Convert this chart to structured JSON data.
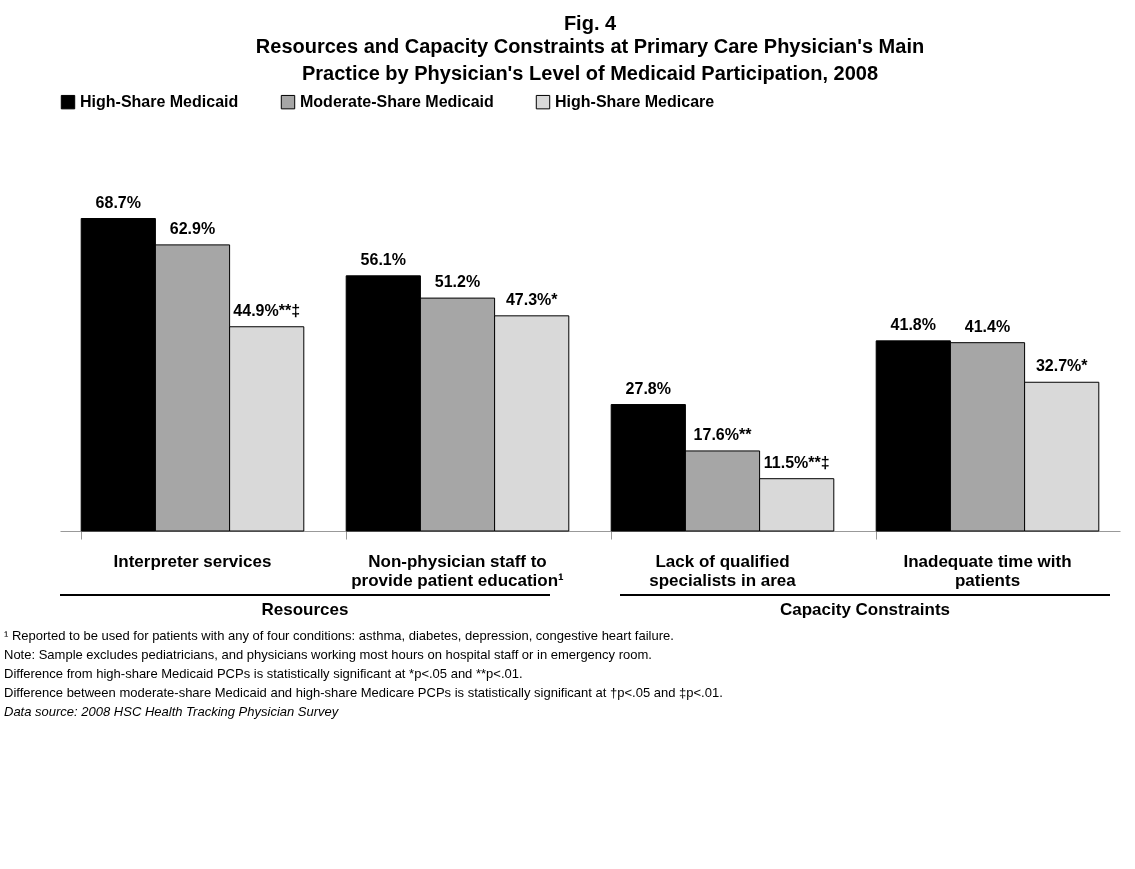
{
  "chart_data": {
    "type": "bar",
    "title": "Fig. 4",
    "subtitle": "Resources and Capacity Constraints at Primary Care Physician's Main Practice by Physician's Level of Medicaid Participation, 2008",
    "categories": [
      "Interpreter services",
      "Non-physician staff to provide patient education¹",
      "Lack of qualified specialists in area",
      "Inadequate time with patients"
    ],
    "series": [
      {
        "name": "High-Share Medicaid",
        "color": "#000000",
        "values": [
          68.7,
          56.1,
          27.8,
          41.8
        ],
        "value_labels": [
          "68.7%",
          "56.1%",
          "27.8%",
          "41.8%"
        ]
      },
      {
        "name": "Moderate-Share Medicaid",
        "color": "#a6a6a6",
        "values": [
          62.9,
          51.2,
          17.6,
          41.4
        ],
        "value_labels": [
          "62.9%",
          "51.2%",
          "17.6%**",
          "41.4%"
        ]
      },
      {
        "name": "High-Share Medicare",
        "color": "#d9d9d9",
        "values": [
          44.9,
          47.3,
          11.5,
          32.7
        ],
        "value_labels": [
          "44.9%**‡",
          "47.3%*",
          "11.5%**‡",
          "32.7%*"
        ]
      }
    ],
    "legend": "top",
    "grid": false,
    "tick_labels": "x",
    "annotations": [
      "Resources",
      "Capacity Constraints",
      "¹ Reported to be used for patients with any of four conditions: asthma, diabetes, depression, congestive heart failure.",
      "Note: Sample excludes pediatricians, and physicians working most hours on hospital staff or in emergency room.",
      "Difference from high-share Medicaid PCPs is statistically significant at *p<.05 and **p<.01.",
      "Difference between moderate-share Medicaid and high-share Medicare PCPs is statistically significant at †p<.05 and ‡p<.01.",
      "Data source: 2008 HSC Health Tracking Physician Survey"
    ]
  }
}
